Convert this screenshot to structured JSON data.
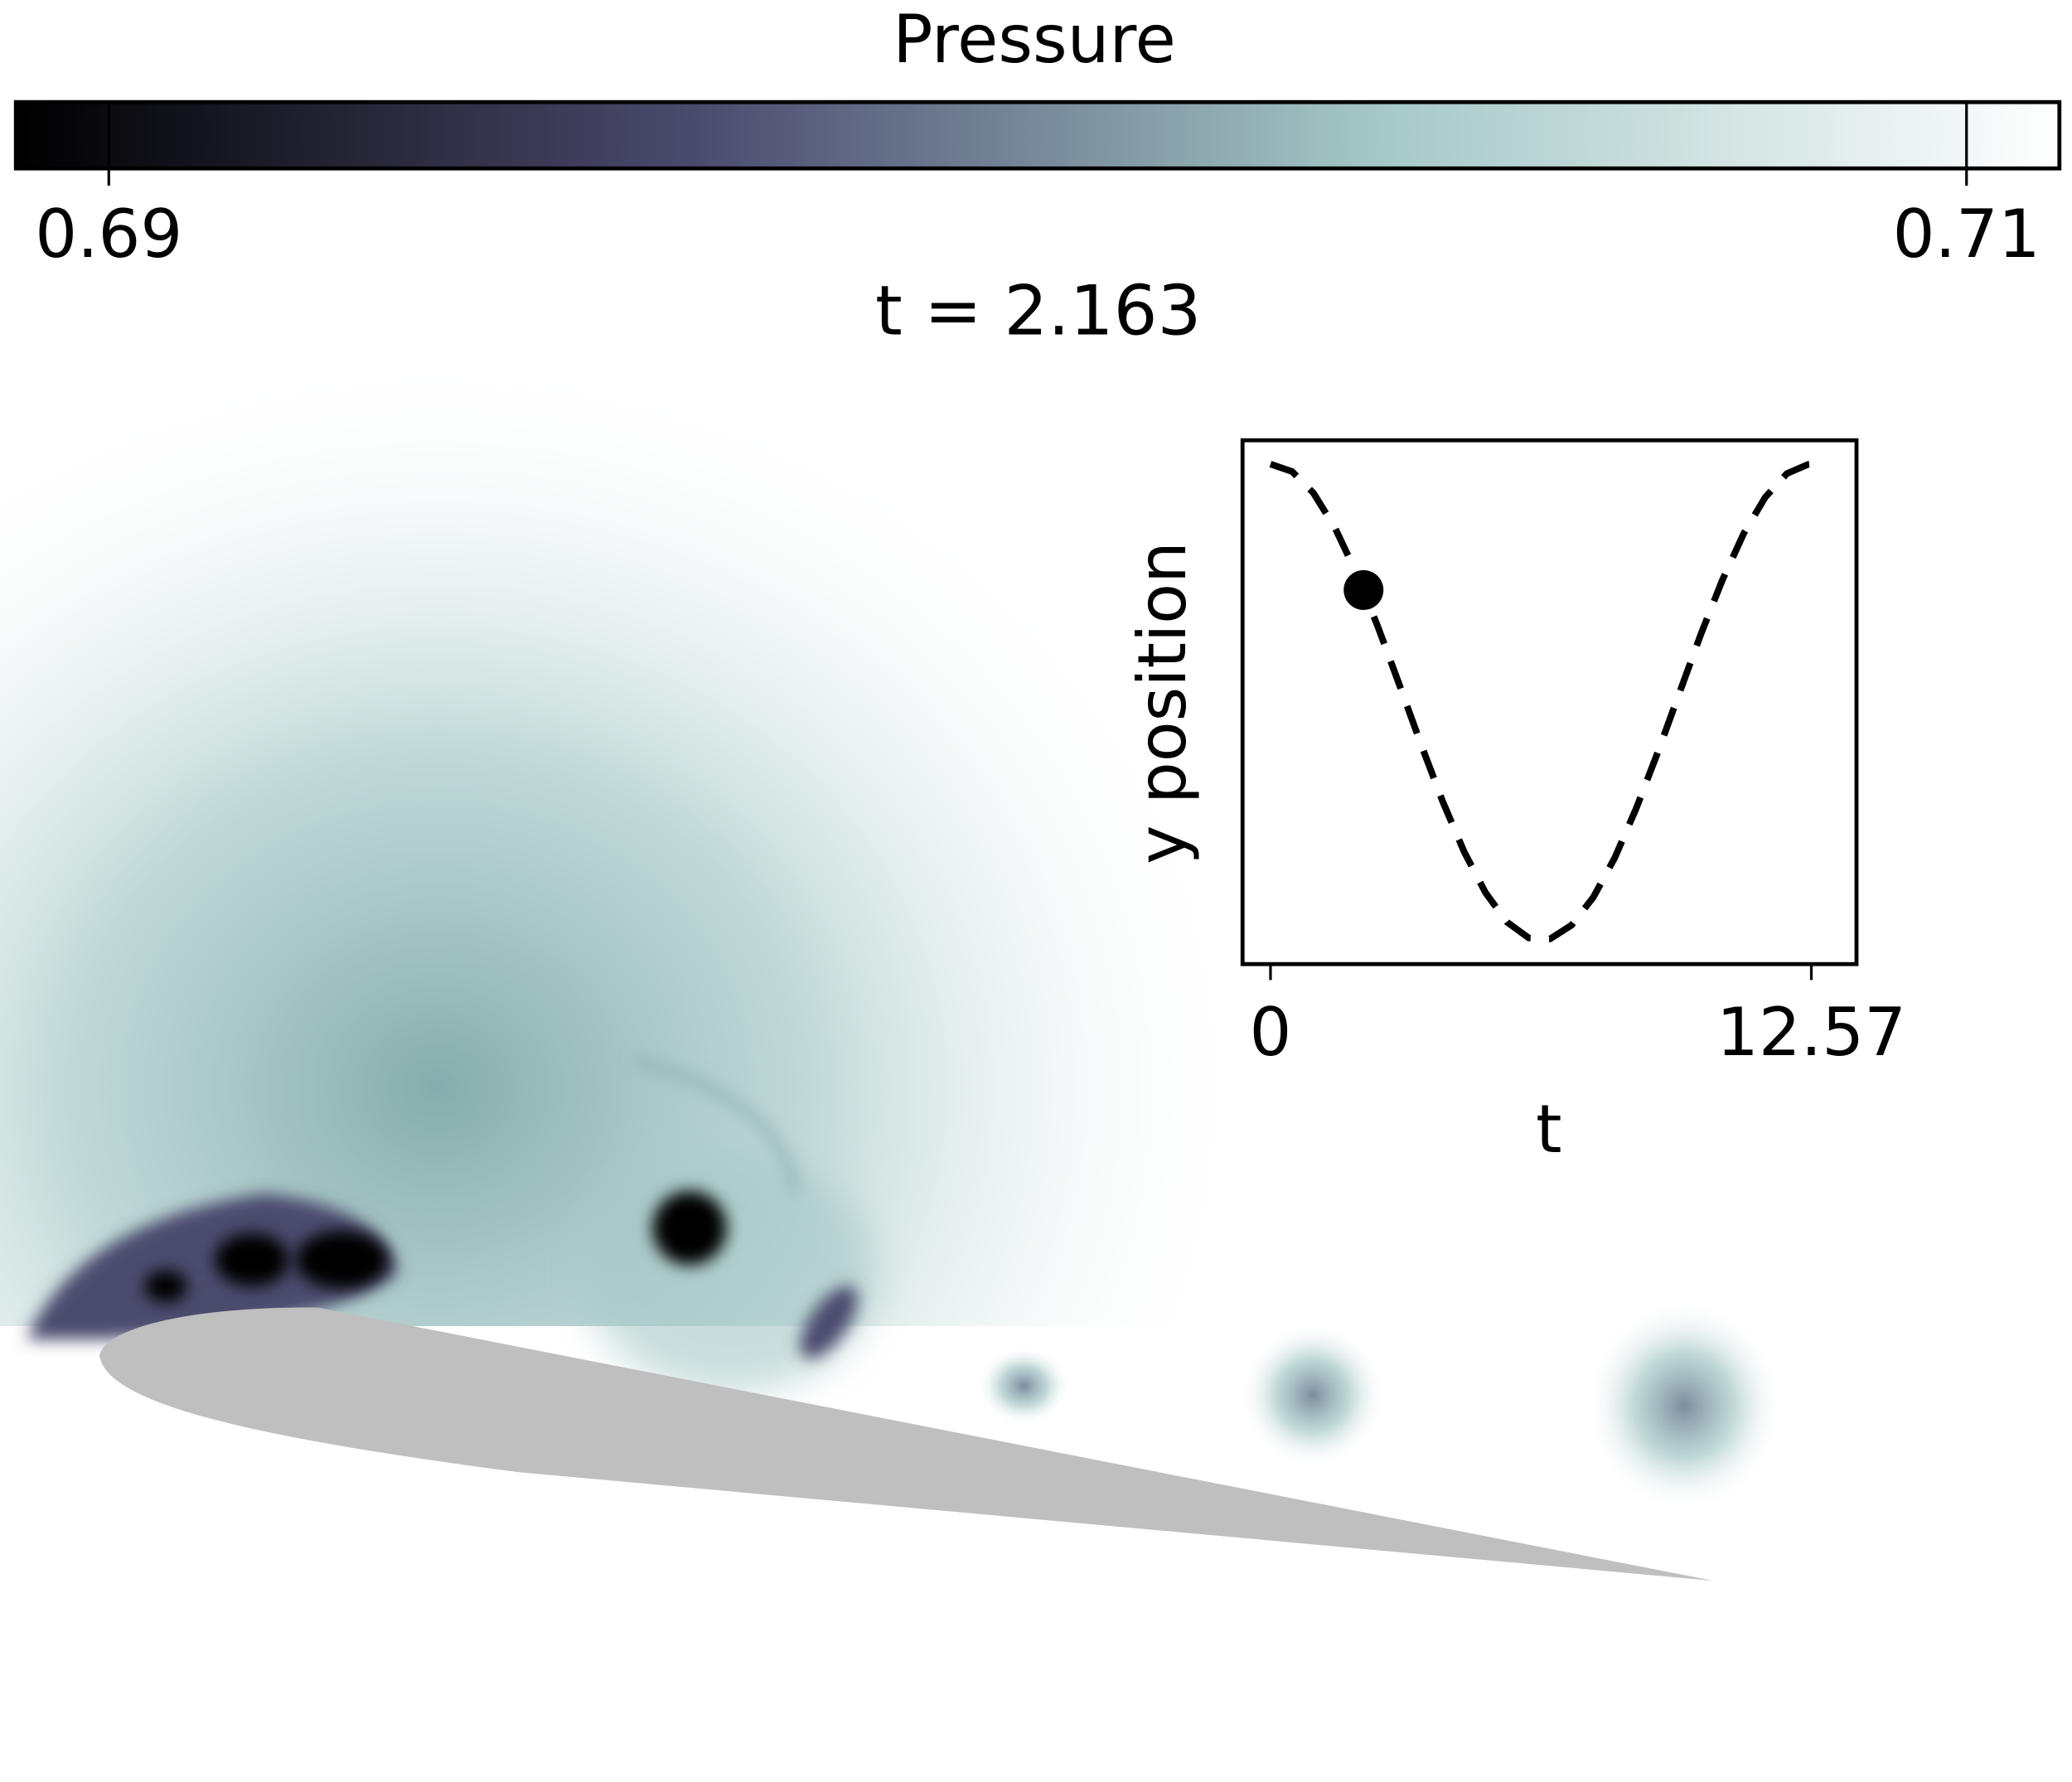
{
  "chart_data": [
    {
      "type": "heatmap",
      "title": "t = 2.163",
      "colorbar": {
        "label": "Pressure",
        "lim": [
          0.689,
          0.711
        ],
        "ticks": [
          0.69,
          0.71
        ],
        "colors": [
          "#000000",
          "#4b4b6e",
          "#a5c8c6",
          "#ffffff"
        ]
      }
    },
    {
      "type": "line",
      "xlabel": "t",
      "ylabel": "y position",
      "x": [
        0,
        0.5,
        1,
        1.5,
        2,
        2.5,
        3,
        3.5,
        4,
        4.5,
        5,
        5.5,
        6,
        6.5,
        7,
        7.5,
        8,
        8.5,
        9,
        9.5,
        10,
        10.5,
        11,
        11.5,
        12,
        12.5,
        12.57
      ],
      "values": [
        1,
        0.969,
        0.878,
        0.732,
        0.54,
        0.315,
        0.071,
        -0.178,
        -0.416,
        -0.628,
        -0.801,
        -0.924,
        -0.99,
        -0.994,
        -0.936,
        -0.82,
        -0.654,
        -0.446,
        -0.211,
        0.037,
        0.284,
        0.512,
        0.709,
        0.861,
        0.96,
        0.999,
        1.0
      ],
      "color": "#000000",
      "dashed": true,
      "marker": {
        "x": 2.163,
        "y": 0.471
      },
      "xlim": [
        -0.65,
        13.62
      ],
      "ylim": [
        -1.1,
        1.1
      ],
      "xticks": [
        0,
        12.57
      ]
    }
  ]
}
